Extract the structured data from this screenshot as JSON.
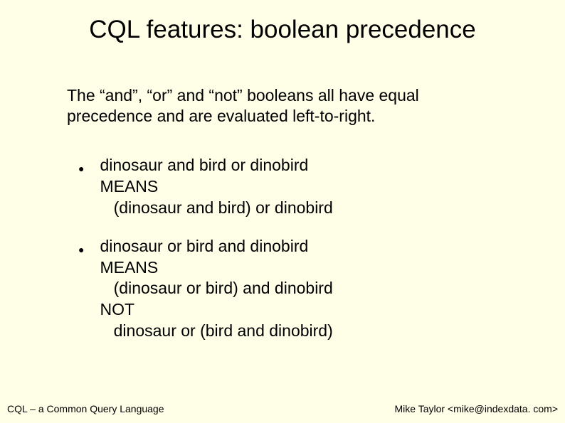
{
  "title": "CQL features: boolean precedence",
  "intro": "The “and”, “or” and “not” booleans all have equal precedence and are evaluated left-to-right.",
  "items": [
    "dinosaur and bird or dinobird\nMEANS\n   (dinosaur and bird) or dinobird",
    "dinosaur or bird and dinobird\nMEANS\n   (dinosaur or bird) and dinobird\nNOT\n   dinosaur or (bird and dinobird)"
  ],
  "footer": {
    "left": "CQL – a Common Query Language",
    "right": "Mike Taylor <mike@indexdata. com>"
  },
  "colors": {
    "background": "#ffffe8",
    "text": "#000000"
  }
}
